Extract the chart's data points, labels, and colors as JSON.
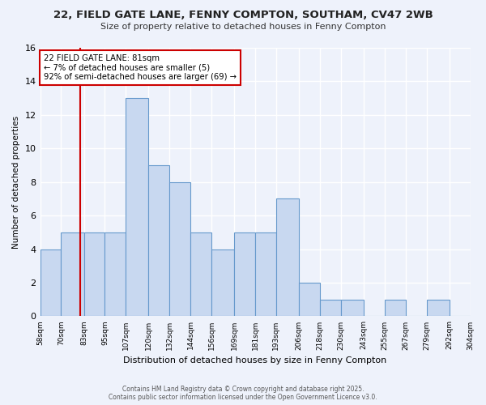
{
  "title_line1": "22, FIELD GATE LANE, FENNY COMPTON, SOUTHAM, CV47 2WB",
  "title_line2": "Size of property relative to detached houses in Fenny Compton",
  "bar_edges": [
    58,
    70,
    83,
    95,
    107,
    120,
    132,
    144,
    156,
    169,
    181,
    193,
    206,
    218,
    230,
    243,
    255,
    267,
    279,
    292,
    304
  ],
  "bar_heights": [
    4,
    5,
    5,
    5,
    13,
    9,
    8,
    5,
    4,
    5,
    5,
    7,
    2,
    1,
    1,
    0,
    1,
    0,
    1,
    0
  ],
  "bar_color": "#c8d8f0",
  "bar_edge_color": "#6699cc",
  "vline_x": 81,
  "vline_color": "#cc0000",
  "xlabel": "Distribution of detached houses by size in Fenny Compton",
  "ylabel": "Number of detached properties",
  "ylim": [
    0,
    16
  ],
  "yticks": [
    0,
    2,
    4,
    6,
    8,
    10,
    12,
    14,
    16
  ],
  "tick_labels": [
    "58sqm",
    "70sqm",
    "83sqm",
    "95sqm",
    "107sqm",
    "120sqm",
    "132sqm",
    "144sqm",
    "156sqm",
    "169sqm",
    "181sqm",
    "193sqm",
    "206sqm",
    "218sqm",
    "230sqm",
    "243sqm",
    "255sqm",
    "267sqm",
    "279sqm",
    "292sqm",
    "304sqm"
  ],
  "annotation_title": "22 FIELD GATE LANE: 81sqm",
  "annotation_line2": "← 7% of detached houses are smaller (5)",
  "annotation_line3": "92% of semi-detached houses are larger (69) →",
  "footer_line1": "Contains HM Land Registry data © Crown copyright and database right 2025.",
  "footer_line2": "Contains public sector information licensed under the Open Government Licence v3.0.",
  "bg_color": "#eef2fb",
  "grid_color": "#ffffff",
  "annotation_box_color": "#ffffff",
  "annotation_box_edge": "#cc0000",
  "title_color": "#222222",
  "subtitle_color": "#333333",
  "footer_color": "#555555"
}
